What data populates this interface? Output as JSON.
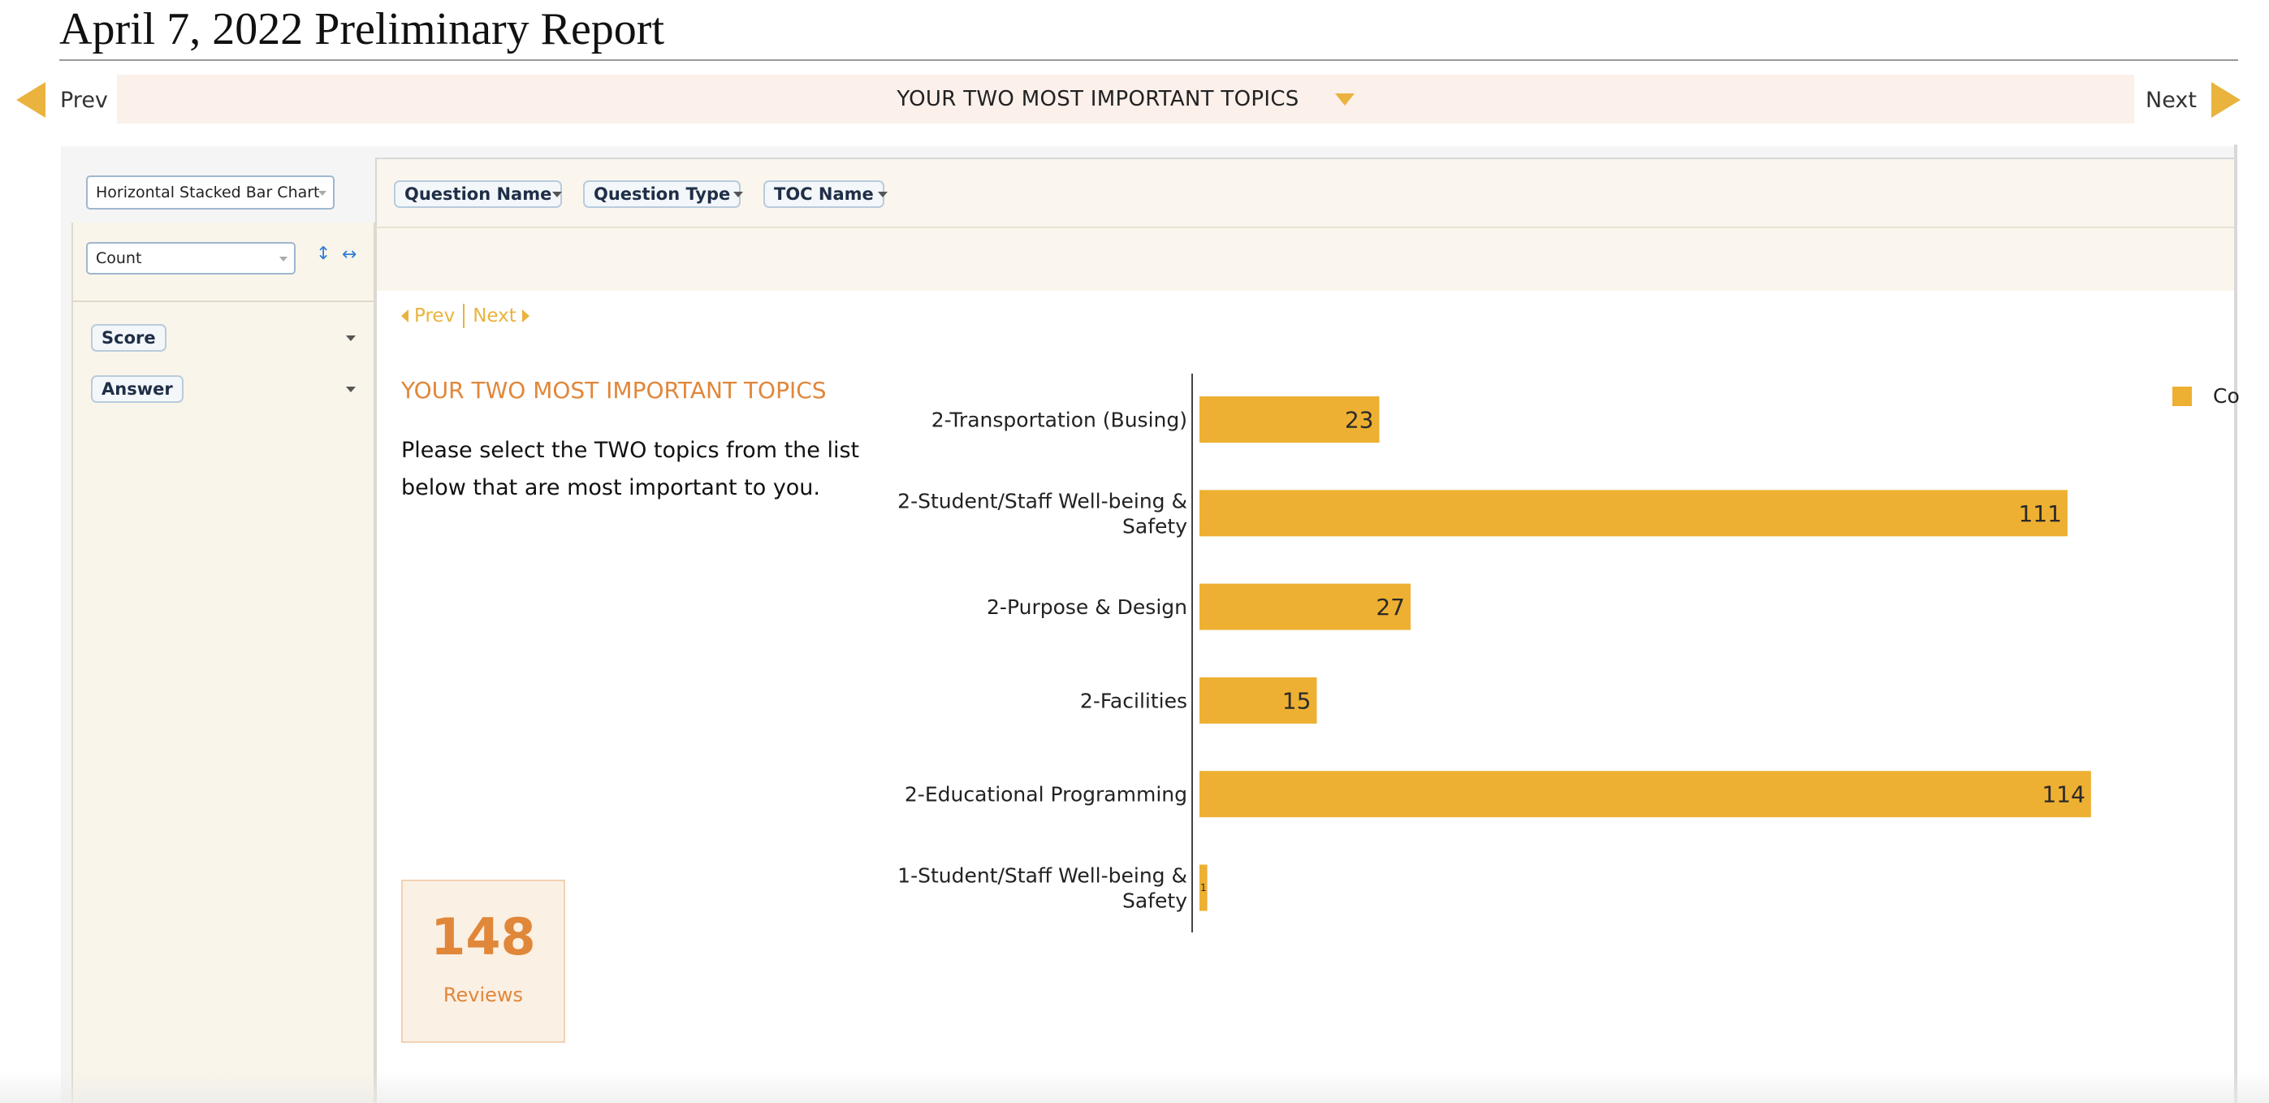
{
  "report": {
    "title": "April 7, 2022 Preliminary Report"
  },
  "nav": {
    "prev_label": "Prev",
    "next_label": "Next",
    "current_section": "YOUR TWO MOST IMPORTANT TOPICS"
  },
  "controls": {
    "chart_type": "Horizontal Stacked Bar Chart",
    "measure": "Count"
  },
  "filters": [
    {
      "label": "Score"
    },
    {
      "label": "Answer"
    }
  ],
  "shelf_pills": [
    {
      "label": "Question Name"
    },
    {
      "label": "Question Type"
    },
    {
      "label": "TOC Name"
    }
  ],
  "pager": {
    "prev_label": "Prev",
    "next_label": "Next"
  },
  "question": {
    "title": "YOUR TWO MOST IMPORTANT TOPICS",
    "text": "Please select the TWO topics from the list below that are most important to you."
  },
  "reviews": {
    "count": "148",
    "label": "Reviews"
  },
  "legend": {
    "label": "Co"
  },
  "colors": {
    "accent": "#e9b33e",
    "bar": "#edb032",
    "title_orange": "#e0873a"
  },
  "chart_data": {
    "type": "bar",
    "orientation": "horizontal",
    "categories": [
      "2-Transportation (Busing)",
      "2-Student/Staff Well-being & Safety",
      "2-Purpose & Design",
      "2-Facilities",
      "2-Educational Programming",
      "1-Student/Staff Well-being & Safety"
    ],
    "values": [
      23,
      111,
      27,
      15,
      114,
      1
    ],
    "data_labels": [
      "23",
      "111",
      "27",
      "15",
      "114",
      "1"
    ]
  }
}
